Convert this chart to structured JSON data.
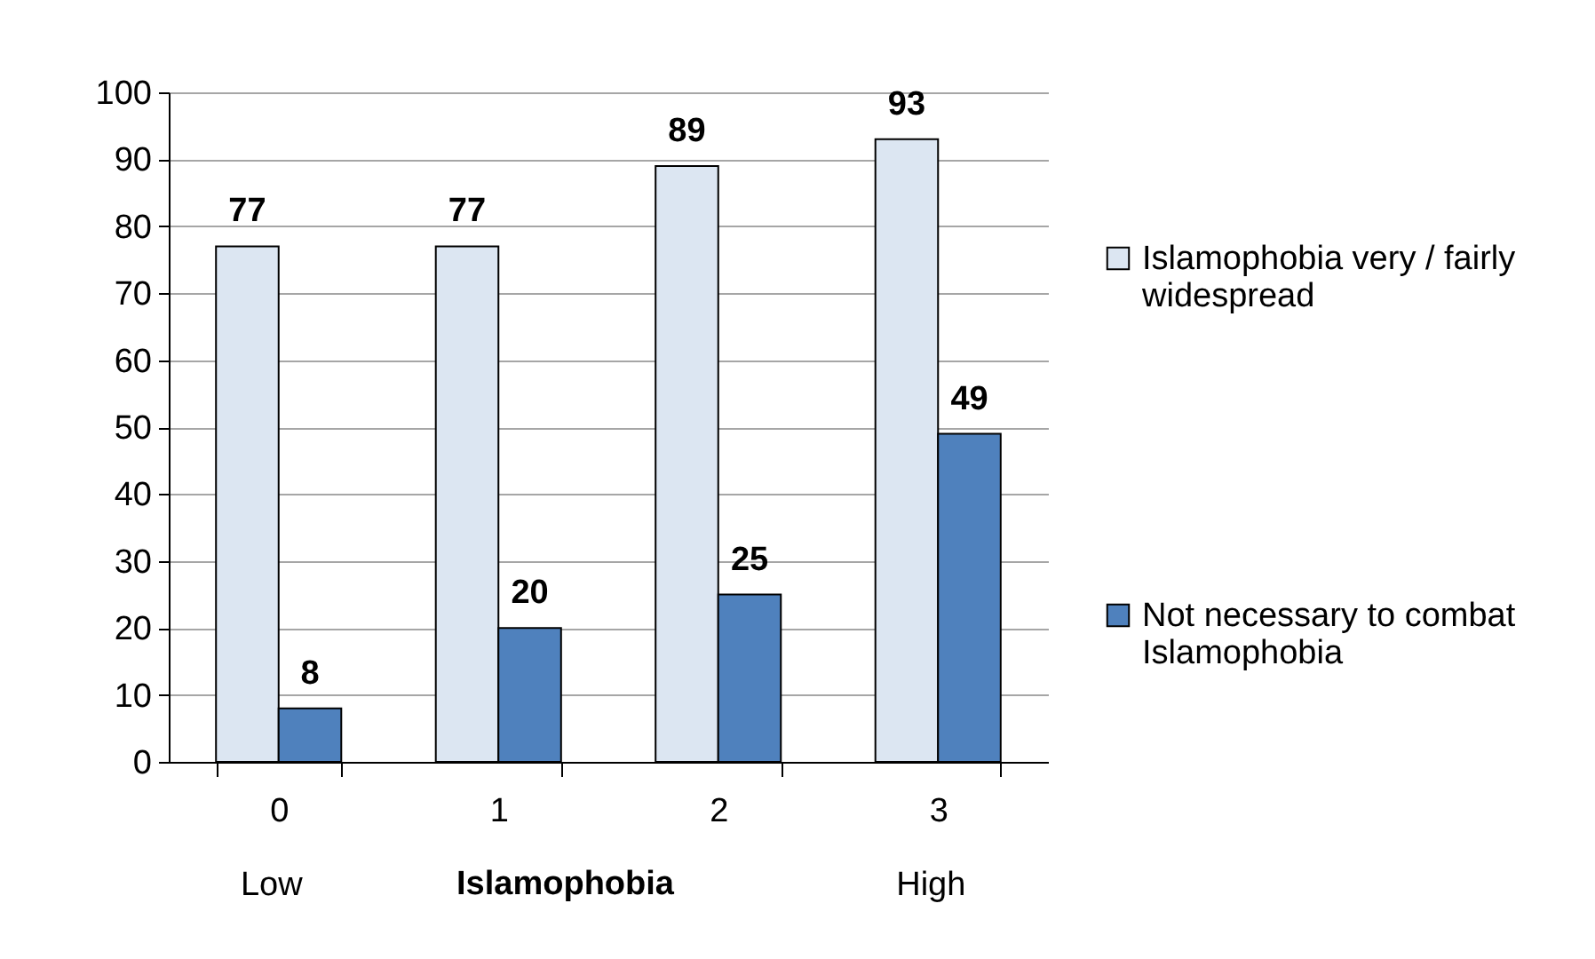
{
  "chart_data": {
    "type": "bar",
    "categories": [
      "0",
      "1",
      "2",
      "3"
    ],
    "xlabel": "Islamophobia",
    "series": [
      {
        "name": "Islamophobia very / fairly widespread",
        "color": "#dce6f2",
        "values": [
          77,
          77,
          89,
          93
        ]
      },
      {
        "name": "Not necessary to combat Islamophobia",
        "color": "#4f81bd",
        "values": [
          8,
          20,
          25,
          49
        ]
      }
    ],
    "ylim": [
      0,
      100
    ],
    "yticks": [
      0,
      10,
      20,
      30,
      40,
      50,
      60,
      70,
      80,
      90,
      100
    ],
    "grid": "y",
    "legend": "right",
    "data_labels": true,
    "annotations": [
      "Low",
      "High"
    ]
  }
}
